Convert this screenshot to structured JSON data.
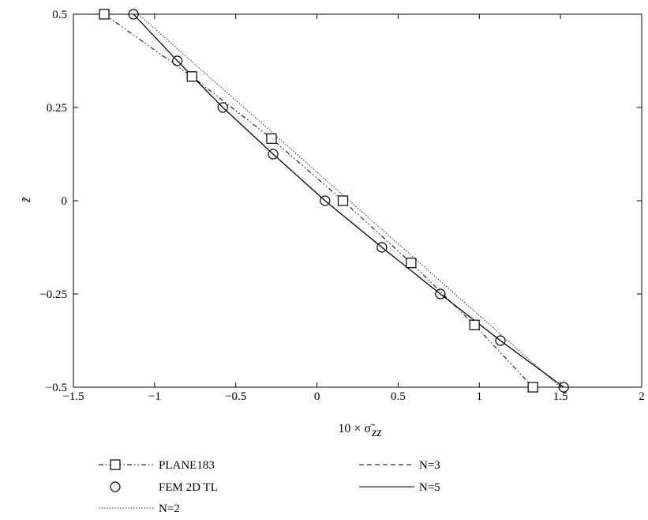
{
  "chart_data": {
    "type": "line",
    "xlabel": "10 × σ̃",
    "xlabel_subscript": "zz",
    "ylabel": "z̃",
    "xlim": [
      -1.5,
      2
    ],
    "ylim": [
      -0.5,
      0.5
    ],
    "xticks": [
      -1.5,
      -1,
      -0.5,
      0,
      0.5,
      1,
      1.5,
      2
    ],
    "xtick_labels": [
      "−1.5",
      "−1",
      "−0.5",
      "0",
      "0.5",
      "1",
      "1.5",
      "2"
    ],
    "yticks": [
      -0.5,
      -0.25,
      0,
      0.25,
      0.5
    ],
    "ytick_labels": [
      "−0.5",
      "−0.25",
      "0",
      "0.25",
      "0.5"
    ],
    "grid": false,
    "legend_position": "below",
    "series": [
      {
        "name": "PLANE183",
        "style": "dash-dot",
        "marker": "square",
        "x": [
          -1.31,
          -0.77,
          -0.28,
          0.16,
          0.58,
          0.97,
          1.33
        ],
        "y": [
          0.5,
          0.333,
          0.1667,
          0.0,
          -0.1667,
          -0.333,
          -0.5
        ]
      },
      {
        "name": "FEM 2D TL",
        "style": "none",
        "marker": "circle",
        "x": [
          -1.13,
          -0.86,
          -0.58,
          -0.27,
          0.05,
          0.4,
          0.76,
          1.13,
          1.52
        ],
        "y": [
          0.5,
          0.375,
          0.25,
          0.125,
          0.0,
          -0.125,
          -0.25,
          -0.375,
          -0.5
        ]
      },
      {
        "name": "N=2",
        "style": "dotted",
        "marker": "none",
        "x": [
          -1.1,
          1.5
        ],
        "y": [
          0.5,
          -0.5
        ]
      },
      {
        "name": "N=3",
        "style": "dashed",
        "marker": "none",
        "x": [
          -1.13,
          -0.86,
          -0.58,
          -0.27,
          0.05,
          0.4,
          0.76,
          1.13,
          1.52
        ],
        "y": [
          0.5,
          0.375,
          0.25,
          0.125,
          0.0,
          -0.125,
          -0.25,
          -0.375,
          -0.5
        ]
      },
      {
        "name": "N=5",
        "style": "solid",
        "marker": "none",
        "x": [
          -1.13,
          -0.86,
          -0.58,
          -0.27,
          0.05,
          0.4,
          0.76,
          1.13,
          1.52
        ],
        "y": [
          0.5,
          0.375,
          0.25,
          0.125,
          0.0,
          -0.125,
          -0.25,
          -0.375,
          -0.5
        ]
      }
    ]
  }
}
